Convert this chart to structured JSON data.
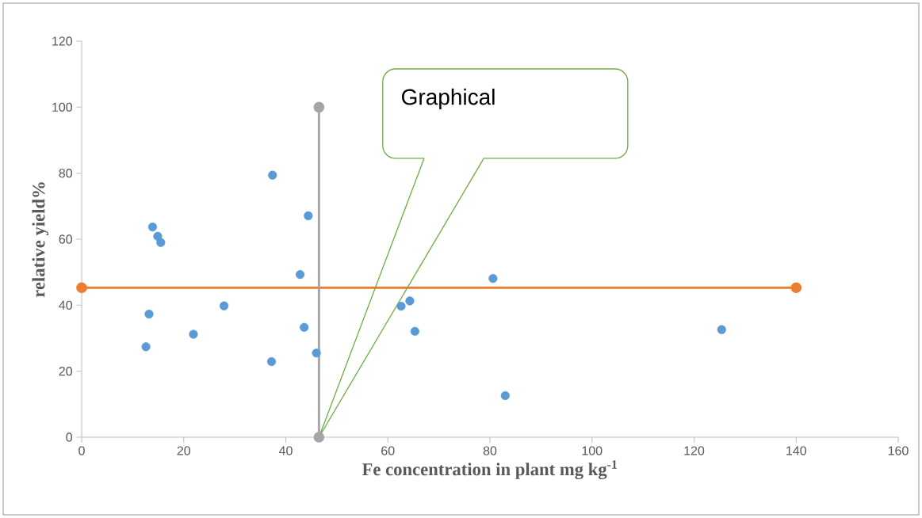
{
  "chart_data": {
    "type": "scatter",
    "xlabel": "Fe concentration in plant mg kg$^{-1}$",
    "ylabel": "relative yield%",
    "xlim": [
      0,
      160
    ],
    "ylim": [
      0,
      120
    ],
    "xticks": [
      0,
      20,
      40,
      60,
      80,
      100,
      120,
      140,
      160
    ],
    "yticks": [
      0,
      20,
      40,
      60,
      80,
      100,
      120
    ],
    "marker": "circle",
    "series": [
      {
        "color": "#5b9bd5",
        "x": [
          37.4,
          44.4,
          13.9,
          14.9,
          15.5,
          42.8,
          13.2,
          27.9,
          21.9,
          12.6,
          43.6,
          46.0,
          37.2,
          64.3,
          62.6,
          65.3,
          80.6,
          83.0,
          125.4
        ],
        "values": [
          79.4,
          67.1,
          63.7,
          60.9,
          59.0,
          49.3,
          37.3,
          39.8,
          31.2,
          27.4,
          33.3,
          25.5,
          22.9,
          41.3,
          39.7,
          32.1,
          48.1,
          12.6,
          32.6
        ]
      },
      {
        "type": "line",
        "color": "#ed7d31",
        "x": [
          0,
          140
        ],
        "values": [
          45.3,
          45.3
        ]
      },
      {
        "type": "line",
        "color": "#a5a5a5",
        "x": [
          46.5,
          46.5
        ],
        "values": [
          0,
          100
        ]
      }
    ],
    "annotations": [
      "Graphical"
    ]
  }
}
